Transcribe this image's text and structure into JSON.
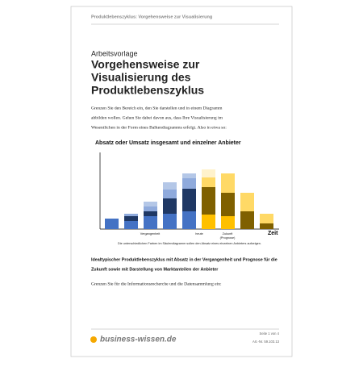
{
  "header": {
    "running_title": "Produktlebenszyklus: Vorgehensweise zur Visualisierung"
  },
  "doc_type": "Arbeitsvorlage",
  "title_lines": [
    "Vorgehensweise zur",
    "Visualisierung des",
    "Produktlebenszyklus"
  ],
  "intro_lines": [
    "Grenzen Sie den Bereich ein, den Sie darstellen und in einem Diagramm",
    "abbilden wollen. Gehen Sie dabei davon aus, dass Ihre Visualisierung im",
    "Wesentlichen in der Form eines Balkendiagramms erfolgt. Also in etwa so:"
  ],
  "chart": {
    "type": "bar",
    "stacked": true,
    "title": "Absatz oder Umsatz insgesamt und einzelner Anbieter",
    "x_label": "Zeit",
    "period_labels": [
      "Vergangenheit",
      "heute",
      "Zukunft",
      "(Prognose)"
    ],
    "ylim": [
      0,
      95
    ],
    "series": [
      {
        "values": [
          13,
          10,
          16,
          19,
          22,
          18,
          16,
          null,
          null
        ],
        "colors": [
          "#4472c4",
          "#4472c4",
          "#4472c4",
          "#4472c4",
          "#4472c4",
          "#ffc000",
          "#ffc000",
          null,
          null
        ]
      },
      {
        "values": [
          null,
          6,
          6,
          19,
          28,
          34,
          29,
          22,
          7
        ],
        "colors": [
          null,
          "#1f3864",
          "#1f3864",
          "#1f3864",
          "#1f3864",
          "#7f6000",
          "#7f6000",
          "#7f6000",
          "#7f6000"
        ]
      },
      {
        "values": [
          null,
          3,
          6,
          11,
          13,
          12,
          24,
          23,
          12
        ],
        "colors": [
          null,
          "#8faadc",
          "#8faadc",
          "#8faadc",
          "#8faadc",
          "#ffd966",
          "#ffd966",
          "#ffd966",
          "#ffd966"
        ]
      },
      {
        "values": [
          null,
          null,
          6,
          9,
          6,
          10,
          null,
          null,
          null
        ],
        "colors": [
          null,
          null,
          "#b4c7e7",
          "#b4c7e7",
          "#b4c7e7",
          "#fff2cc",
          null,
          null,
          null
        ]
      }
    ],
    "note": "Die unterschiedlichen Farben im Säulendiagramm sollen den Absatz eines einzelnen Anbieters aufzeigen."
  },
  "caption_lines": [
    "Idealtypischer Produktlebenszyklus mit Absatz in der Vergangenheit und Prognose für die",
    "Zukunft sowie mit Darstellung von Marktanteilen der Anbieter"
  ],
  "prompt": "Grenzen Sie für die Informationsrecherche und die Datensammlung ein:",
  "footer": {
    "logo": "business-wissen.de",
    "page": "Seite 1 von 4",
    "article": "Art.-Nr. 59.103.13"
  }
}
